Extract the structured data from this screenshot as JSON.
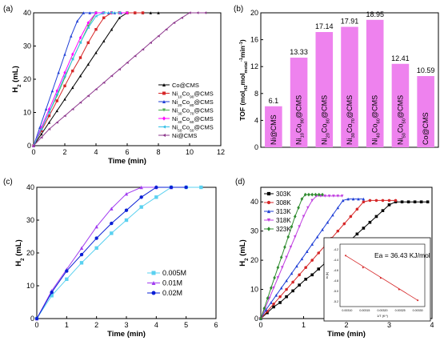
{
  "chart_data": [
    {
      "panel": "(a)",
      "type": "line",
      "xlabel": "Time (min)",
      "ylabel": "H2 (mL)",
      "xlim": [
        0,
        12
      ],
      "ylim": [
        0,
        40
      ],
      "xticks": [
        0,
        2,
        4,
        6,
        8,
        10,
        12
      ],
      "yticks": [
        0,
        10,
        20,
        30,
        40
      ],
      "legend_position": "center-right",
      "series": [
        {
          "name": "Co@CMS",
          "color": "#000000",
          "marker": "tri-up",
          "x": [
            0,
            0.5,
            1,
            1.5,
            2,
            2.5,
            3,
            3.5,
            4,
            4.5,
            5,
            5.5,
            6,
            6.5,
            7,
            7.5,
            8
          ],
          "y": [
            0,
            3.5,
            7,
            10.5,
            14,
            17.5,
            21,
            24.5,
            28,
            31.5,
            35,
            38.5,
            40,
            40,
            40,
            40,
            40
          ]
        },
        {
          "name": "Ni10Co90@CMS",
          "color": "#d62728",
          "marker": "square",
          "x": [
            0,
            0.5,
            1,
            1.5,
            2,
            2.5,
            3,
            3.5,
            4,
            4.5,
            5,
            5.5,
            6,
            6.5,
            7
          ],
          "y": [
            0,
            4.5,
            9,
            13.5,
            18,
            22.5,
            26.5,
            31,
            35,
            38.5,
            40,
            40,
            40,
            40,
            40
          ]
        },
        {
          "name": "Ni20Co80@CMS",
          "color": "#1f3fd6",
          "marker": "tri-up",
          "x": [
            0,
            0.4,
            0.8,
            1.2,
            1.6,
            2,
            2.4,
            2.8,
            3.2,
            3.6,
            4,
            4.4,
            4.8,
            5.2,
            5.6
          ],
          "y": [
            0,
            5.5,
            11,
            16.5,
            22,
            27.5,
            33,
            37.5,
            40,
            40,
            40,
            40,
            40,
            40,
            40
          ]
        },
        {
          "name": "Ni30Co70@CMS",
          "color": "#4caf50",
          "marker": "tri-down",
          "x": [
            0,
            0.5,
            1,
            1.5,
            2,
            2.5,
            3,
            3.5,
            4,
            4.5,
            5,
            5.5,
            6
          ],
          "y": [
            0,
            5,
            10,
            15,
            20.5,
            26,
            31,
            36,
            40,
            40,
            40,
            40,
            40
          ]
        },
        {
          "name": "Ni40Co60@CMS",
          "color": "#ff00ff",
          "marker": "diamond",
          "x": [
            0,
            0.5,
            1,
            1.5,
            2,
            2.5,
            3,
            3.5,
            4,
            4.5,
            5,
            5.5,
            6
          ],
          "y": [
            0,
            5.5,
            11,
            16.5,
            22,
            27.5,
            32.5,
            37,
            40,
            40,
            40,
            40,
            40
          ]
        },
        {
          "name": "Ni50Co50@CMS",
          "color": "#35c0e6",
          "marker": "tri-left",
          "x": [
            0,
            0.5,
            1,
            1.5,
            2,
            2.5,
            3,
            3.5,
            4,
            4.5,
            5,
            5.5
          ],
          "y": [
            0,
            5,
            10,
            15.5,
            21,
            26,
            31,
            35.5,
            39,
            40,
            40,
            40
          ]
        },
        {
          "name": "Ni@CMS",
          "color": "#8e3a8e",
          "marker": "tri-left",
          "x": [
            0,
            0.5,
            1,
            1.5,
            2,
            2.5,
            3,
            3.5,
            4,
            4.5,
            5,
            5.5,
            6,
            6.5,
            7,
            7.5,
            8,
            8.5,
            9,
            9.5,
            10,
            10.5,
            11
          ],
          "y": [
            0,
            2.5,
            5,
            7,
            9,
            11,
            13,
            15,
            17,
            19,
            21,
            23,
            25,
            27,
            29,
            31,
            33,
            35,
            37,
            38.5,
            40,
            40,
            40
          ]
        }
      ]
    },
    {
      "panel": "(b)",
      "type": "bar",
      "ylabel": "TOF (molH2molmetal-1min-1)",
      "ylim": [
        0,
        20
      ],
      "yticks": [
        0,
        4,
        8,
        12,
        16,
        20
      ],
      "bar_color": "#ee82ee",
      "categories": [
        "Ni@CMS",
        "Ni10Co90@CMS",
        "Ni20Co80@CMS",
        "Ni30Co70@CMS",
        "Ni40Co60@CMS",
        "Ni50Co50@CMS",
        "Co@CMS"
      ],
      "values": [
        6.1,
        13.33,
        17.14,
        17.91,
        18.95,
        12.41,
        10.59
      ],
      "value_labels": [
        "6.1",
        "13.33",
        "17.14",
        "17.91",
        "18.95",
        "12.41",
        "10.59"
      ]
    },
    {
      "panel": "(c)",
      "type": "line",
      "xlabel": "Time (min)",
      "ylabel": "H2 (mL)",
      "xlim": [
        0,
        6
      ],
      "ylim": [
        0,
        40
      ],
      "xticks": [
        0,
        1,
        2,
        3,
        4,
        5,
        6
      ],
      "yticks": [
        0,
        10,
        20,
        30,
        40
      ],
      "legend_position": "bottom-right",
      "series": [
        {
          "name": "0.005M",
          "color": "#5ad1f0",
          "marker": "square",
          "x": [
            0,
            0.5,
            1,
            1.5,
            2,
            2.5,
            3,
            3.5,
            4,
            4.5,
            5,
            5.5
          ],
          "y": [
            0,
            7,
            12,
            17,
            21.5,
            26,
            30,
            34,
            37,
            40,
            40,
            40
          ]
        },
        {
          "name": "0.01M",
          "color": "#a23df0",
          "marker": "tri-up",
          "x": [
            0,
            0.5,
            1,
            1.5,
            2,
            2.5,
            3,
            3.5,
            4,
            4.5
          ],
          "y": [
            0,
            8.5,
            15,
            21.5,
            28,
            33.5,
            38,
            40,
            40,
            40
          ]
        },
        {
          "name": "0.02M",
          "color": "#0a1fd6",
          "marker": "circle",
          "x": [
            0,
            0.5,
            1,
            1.5,
            2,
            2.5,
            3,
            3.5,
            4,
            4.5,
            5
          ],
          "y": [
            0,
            8,
            14.5,
            19.5,
            24.5,
            29,
            33,
            37,
            40,
            40,
            40
          ]
        }
      ]
    },
    {
      "panel": "(d)",
      "type": "line",
      "xlabel": "Time (min)",
      "ylabel": "H2 (mL)",
      "xlim": [
        0,
        4
      ],
      "ylim": [
        0,
        45
      ],
      "xticks": [
        0,
        1,
        2,
        3,
        4
      ],
      "yticks": [
        0,
        10,
        20,
        30,
        40
      ],
      "legend_position": "top-left",
      "series": [
        {
          "name": "303K",
          "color": "#000000",
          "marker": "square",
          "x": [
            0,
            0.15,
            0.3,
            0.45,
            0.6,
            0.75,
            0.9,
            1.05,
            1.2,
            1.35,
            1.5,
            1.65,
            1.8,
            1.95,
            2.1,
            2.25,
            2.4,
            2.55,
            2.7,
            2.85,
            3.0,
            3.15,
            3.3,
            3.45,
            3.6,
            3.75,
            3.9
          ],
          "y": [
            0,
            2,
            4,
            5.5,
            7.5,
            9.5,
            11.5,
            13.5,
            15,
            17,
            19,
            21,
            23,
            25,
            27,
            29,
            31,
            33,
            35,
            37,
            39,
            40,
            40,
            40,
            40,
            40,
            40
          ]
        },
        {
          "name": "308K",
          "color": "#d62728",
          "marker": "circle",
          "x": [
            0,
            0.15,
            0.3,
            0.45,
            0.6,
            0.75,
            0.9,
            1.05,
            1.2,
            1.35,
            1.5,
            1.65,
            1.8,
            1.95,
            2.1,
            2.25,
            2.4,
            2.55,
            2.7,
            2.85,
            3.0,
            3.15
          ],
          "y": [
            0,
            2.5,
            5,
            7.5,
            10,
            12.5,
            15,
            17.5,
            20,
            22.5,
            25,
            27.5,
            30,
            32.5,
            35,
            37.5,
            40,
            40.5,
            40.5,
            40.5,
            40.5,
            40.5
          ]
        },
        {
          "name": "313K",
          "color": "#1f3fd6",
          "marker": "tri-up",
          "x": [
            0,
            0.12,
            0.24,
            0.36,
            0.48,
            0.6,
            0.72,
            0.84,
            0.96,
            1.08,
            1.2,
            1.32,
            1.44,
            1.56,
            1.68,
            1.8,
            1.92,
            2.04,
            2.16,
            2.28,
            2.4
          ],
          "y": [
            0,
            3,
            5.5,
            8,
            10.5,
            13,
            15.5,
            18,
            20.5,
            23,
            25.5,
            28,
            30.5,
            33,
            35.5,
            38,
            40.5,
            41,
            41,
            41,
            41
          ]
        },
        {
          "name": "318K",
          "color": "#c03fe0",
          "marker": "tri-down",
          "x": [
            0,
            0.1,
            0.2,
            0.3,
            0.4,
            0.5,
            0.6,
            0.7,
            0.8,
            0.9,
            1.0,
            1.1,
            1.2,
            1.3,
            1.4,
            1.5,
            1.6,
            1.7,
            1.8,
            1.9
          ],
          "y": [
            0,
            3.5,
            7,
            10.5,
            14,
            17.5,
            21,
            24.5,
            28,
            31.5,
            35,
            38,
            40.5,
            42,
            42,
            42,
            42,
            42,
            42,
            42
          ]
        },
        {
          "name": "323K",
          "color": "#2e8b2e",
          "marker": "diamond",
          "x": [
            0,
            0.08,
            0.16,
            0.24,
            0.32,
            0.4,
            0.48,
            0.56,
            0.64,
            0.72,
            0.8,
            0.88,
            0.96,
            1.04,
            1.12,
            1.2,
            1.28,
            1.36,
            1.44
          ],
          "y": [
            0,
            3.5,
            7,
            10.5,
            14,
            17.5,
            21,
            24.5,
            28,
            31.5,
            35,
            38,
            41,
            42.5,
            42.5,
            42.5,
            42.5,
            42.5,
            42.5
          ]
        }
      ],
      "inset": {
        "type": "scatter",
        "annotation": "Ea = 36.43 KJ/mol",
        "xlabel": "1/T (K-1)",
        "ylabel": "ln (k)",
        "xticks": [
          "0.00310",
          "0.00315",
          "0.00320",
          "0.00325",
          "0.00330"
        ],
        "yticks": [
          "-4.2",
          "-4.4",
          "-4.6",
          "-4.8",
          "-5.0",
          "-5.2"
        ],
        "xlim": [
          0.00308,
          0.00332
        ],
        "ylim": [
          -5.3,
          -4.1
        ],
        "x": [
          0.003096,
          0.003145,
          0.003195,
          0.003247,
          0.0033
        ],
        "y": [
          -4.32,
          -4.55,
          -4.75,
          -4.97,
          -5.18
        ],
        "point_color": "#d62728"
      }
    }
  ]
}
